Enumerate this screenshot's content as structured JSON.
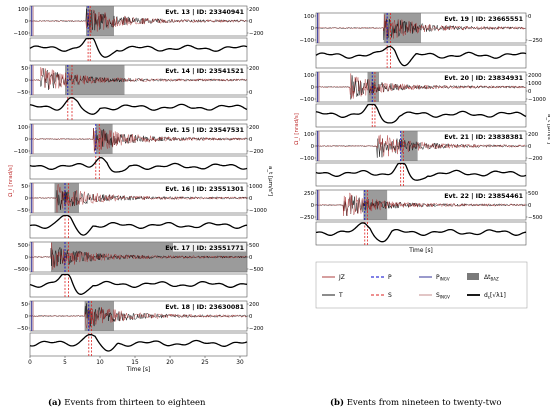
{
  "figure": {
    "caption_a_tag": "(a)",
    "caption_a": "Events from thirteen to eighteen",
    "caption_b_tag": "(b)",
    "caption_b": "Events from nineteen to twenty-two",
    "colors": {
      "vertical": "#a52a2a",
      "transverse": "#000000",
      "p_pick": "#0000cc",
      "s_pick": "#dd2222",
      "ingv_p": "#1f1f8f",
      "ingv_s": "#c08080",
      "window": "#7a7a7a",
      "curve": "#000000"
    }
  },
  "chart_data": [
    {
      "panel": "a",
      "type": "line",
      "xlabel": "Time [s]",
      "xlim": [
        0,
        31
      ],
      "xticks": [
        0,
        5,
        10,
        15,
        20,
        25,
        30
      ],
      "left_ylabel": "Ω_i [nrad/s]",
      "right_ylabel": "a_t [μm/s²]",
      "events": [
        {
          "label": "Evt. 13 | ID: 23340941",
          "yticks_left": [
            "100",
            "0",
            "−100"
          ],
          "yticks_right": [
            "200",
            "0",
            "−200"
          ],
          "p_pick": 8.3,
          "s_pick": 8.6,
          "window": [
            8.0,
            12.0
          ],
          "onset": 8.0,
          "peak": 8.4
        },
        {
          "label": "Evt. 14 | ID: 23541521",
          "yticks_left": [
            "50",
            "0",
            "−50"
          ],
          "yticks_right": [
            "200",
            "0"
          ],
          "p_pick": 5.4,
          "s_pick": 6.0,
          "window": [
            5.0,
            13.5
          ],
          "onset": 1.5,
          "peak": 6.0
        },
        {
          "label": "Evt. 15 | ID: 23547531",
          "yticks_left": [
            "100",
            "0",
            "−100"
          ],
          "yticks_right": [
            "200",
            "0",
            "−200"
          ],
          "p_pick": 9.4,
          "s_pick": 9.9,
          "window": [
            9.4,
            11.8
          ],
          "onset": 9.0,
          "peak": 10.2
        },
        {
          "label": "Evt. 16 | ID: 23551301",
          "yticks_left": [
            "50",
            "0",
            "−50"
          ],
          "yticks_right": [
            "1000",
            "0",
            "−1000"
          ],
          "p_pick": 5.0,
          "s_pick": 5.5,
          "window": [
            3.5,
            7.0
          ],
          "onset": 3.8,
          "peak": 5.0
        },
        {
          "label": "Evt. 17 | ID: 23551771",
          "yticks_left": [
            "500",
            "0",
            "−500"
          ],
          "yticks_right": [
            "500",
            "0",
            "−500"
          ],
          "p_pick": 5.0,
          "s_pick": 5.5,
          "window": [
            3.0,
            31.0
          ],
          "onset": 3.0,
          "peak": 5.0
        },
        {
          "label": "Evt. 18 | ID: 23630081",
          "yticks_left": [
            "50",
            "0",
            "−50"
          ],
          "yticks_right": [
            "200",
            "0",
            "−200"
          ],
          "p_pick": 8.4,
          "s_pick": 8.8,
          "window": [
            7.8,
            12.0
          ],
          "onset": 7.8,
          "peak": 8.5
        }
      ]
    },
    {
      "panel": "b",
      "type": "line",
      "xlabel": "Time [s]",
      "xlim": [
        0,
        31
      ],
      "left_ylabel": "Ω_i [nrad/s]",
      "right_ylabel": "a_t [μm/s²]",
      "events": [
        {
          "label": "Evt. 19 | ID: 23665551",
          "yticks_left": [
            "100",
            "0",
            "−100"
          ],
          "yticks_right": [
            "0",
            "−250"
          ],
          "p_pick": 10.5,
          "s_pick": 11.0,
          "window": [
            10.0,
            15.5
          ],
          "onset": 10.0,
          "peak": 10.8
        },
        {
          "label": "Evt. 20 | ID: 23834931",
          "yticks_left": [
            "100",
            "0",
            "−100"
          ],
          "yticks_right": [
            "2000",
            "1000",
            "0",
            "−1000"
          ],
          "p_pick": 8.3,
          "s_pick": 8.7,
          "window": [
            7.6,
            9.3
          ],
          "onset": 5.0,
          "peak": 8.3
        },
        {
          "label": "Evt. 21 | ID: 23838381",
          "yticks_left": [
            "100",
            "0",
            "−100"
          ],
          "yticks_right": [
            "200",
            "0",
            "−200"
          ],
          "p_pick": 12.5,
          "s_pick": 12.9,
          "window": [
            12.5,
            15.0
          ],
          "onset": 9.0,
          "peak": 12.5
        },
        {
          "label": "Evt. 22 | ID: 23854461",
          "yticks_left": [
            "250",
            "0",
            "−250"
          ],
          "yticks_right": [
            "500",
            "0",
            "−500"
          ],
          "p_pick": 7.2,
          "s_pick": 7.6,
          "window": [
            7.0,
            10.5
          ],
          "onset": 4.0,
          "peak": 7.2
        }
      ]
    }
  ],
  "legend": {
    "items": [
      {
        "label": "JZ",
        "kind": "line",
        "color": "#a52a2a",
        "dash": ""
      },
      {
        "label": "P",
        "kind": "line",
        "color": "#0000cc",
        "dash": "3,2"
      },
      {
        "label": "P",
        "sub": "INGV",
        "kind": "line",
        "color": "#1f1f8f",
        "dash": ""
      },
      {
        "label": "Δt",
        "sub": "BAZ",
        "kind": "box",
        "color": "#7a7a7a",
        "dash": ""
      },
      {
        "label": "T",
        "kind": "line",
        "color": "#000000",
        "dash": ""
      },
      {
        "label": "S",
        "kind": "line",
        "color": "#dd2222",
        "dash": "3,2"
      },
      {
        "label": "S",
        "sub": "INGV",
        "kind": "line",
        "color": "#c08080",
        "dash": ""
      },
      {
        "label": "d",
        "sub": "ε",
        "tail": "[√λ1]",
        "kind": "thick",
        "color": "#000000",
        "dash": ""
      }
    ]
  }
}
